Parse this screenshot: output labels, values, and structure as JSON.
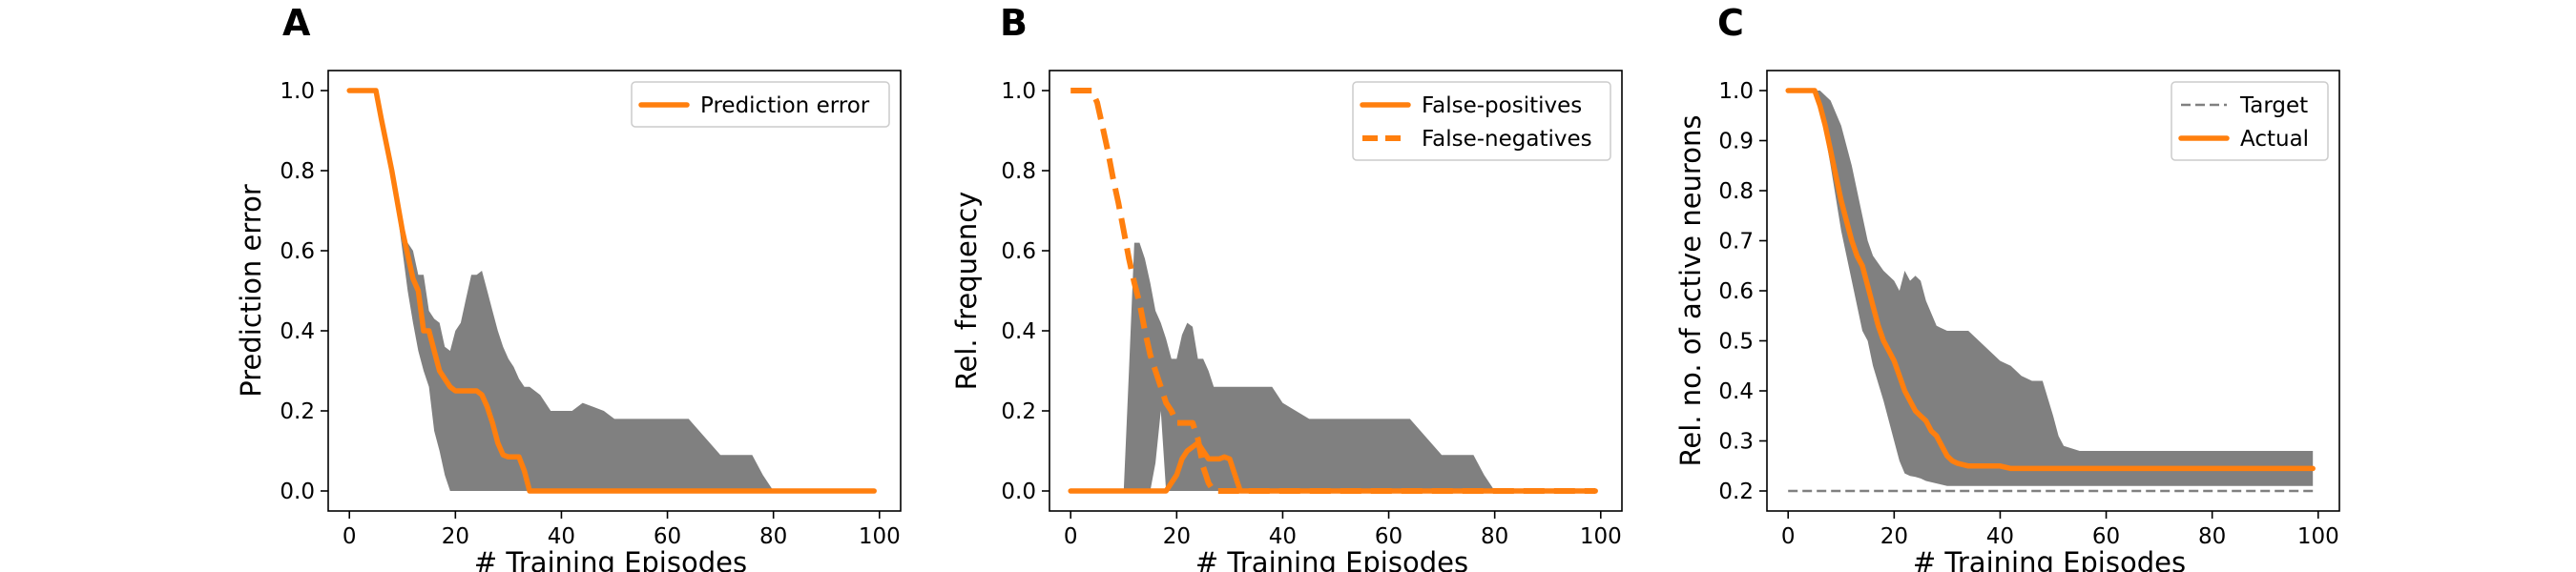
{
  "colors": {
    "series": "#ff7f0e",
    "band": "#808080",
    "target": "#808080"
  },
  "chart_data": [
    {
      "type": "line",
      "panel": "A",
      "xlabel": "# Training Episodes",
      "ylabel": "Prediction error",
      "xlim": [
        -4,
        104
      ],
      "ylim": [
        -0.05,
        1.05
      ],
      "xticks": [
        0,
        20,
        40,
        60,
        80,
        100
      ],
      "yticks": [
        0.0,
        0.2,
        0.4,
        0.6,
        0.8,
        1.0
      ],
      "ytick_labels": [
        "0.0",
        "0.2",
        "0.4",
        "0.6",
        "0.8",
        "1.0"
      ],
      "legend_position": "top-right",
      "series": [
        {
          "name": "Prediction error",
          "style": "solid",
          "x": [
            0,
            5,
            6,
            8,
            10,
            12,
            13,
            14,
            15,
            16,
            17,
            18,
            19,
            20,
            21,
            22,
            23,
            24,
            25,
            26,
            27,
            28,
            29,
            30,
            31,
            32,
            33,
            34,
            40,
            50,
            60,
            70,
            80,
            90,
            99
          ],
          "y": [
            1.0,
            1.0,
            0.93,
            0.8,
            0.65,
            0.53,
            0.5,
            0.4,
            0.4,
            0.35,
            0.3,
            0.28,
            0.26,
            0.25,
            0.25,
            0.25,
            0.25,
            0.25,
            0.24,
            0.21,
            0.17,
            0.12,
            0.09,
            0.085,
            0.085,
            0.085,
            0.05,
            0.0,
            0.0,
            0.0,
            0.0,
            0.0,
            0.0,
            0.0,
            0.0
          ]
        }
      ],
      "band": {
        "x": [
          0,
          5,
          8,
          10,
          11,
          12,
          13,
          14,
          15,
          16,
          17,
          18,
          19,
          20,
          21,
          22,
          23,
          24,
          25,
          26,
          27,
          28,
          29,
          30,
          31,
          32,
          33,
          34,
          36,
          38,
          40,
          42,
          44,
          46,
          48,
          50,
          55,
          60,
          64,
          66,
          68,
          70,
          72,
          76,
          78,
          80,
          85,
          90,
          95,
          99
        ],
        "lower": [
          1.0,
          1.0,
          0.8,
          0.6,
          0.5,
          0.42,
          0.35,
          0.3,
          0.26,
          0.15,
          0.1,
          0.04,
          0.0,
          0.0,
          0.0,
          0.0,
          0.0,
          0.0,
          0.0,
          0.0,
          0.0,
          0.0,
          0.0,
          0.0,
          0.0,
          0.0,
          0.0,
          0.0,
          0.0,
          0.0,
          0.0,
          0.0,
          0.0,
          0.0,
          0.0,
          0.0,
          0.0,
          0.0,
          0.0,
          0.0,
          0.0,
          0.0,
          0.0,
          0.0,
          0.0,
          0.0,
          0.0,
          0.0,
          0.0,
          0.0
        ],
        "upper": [
          1.0,
          1.0,
          0.8,
          0.62,
          0.62,
          0.6,
          0.54,
          0.54,
          0.45,
          0.43,
          0.42,
          0.36,
          0.35,
          0.4,
          0.42,
          0.48,
          0.54,
          0.54,
          0.55,
          0.5,
          0.45,
          0.4,
          0.36,
          0.33,
          0.31,
          0.28,
          0.26,
          0.26,
          0.24,
          0.2,
          0.2,
          0.2,
          0.22,
          0.21,
          0.2,
          0.18,
          0.18,
          0.18,
          0.18,
          0.15,
          0.12,
          0.09,
          0.09,
          0.09,
          0.04,
          0.0,
          0.0,
          0.0,
          0.0,
          0.0
        ]
      }
    },
    {
      "type": "line",
      "panel": "B",
      "xlabel": "# Training Episodes",
      "ylabel": "Rel. frequency",
      "xlim": [
        -4,
        104
      ],
      "ylim": [
        -0.05,
        1.05
      ],
      "xticks": [
        0,
        20,
        40,
        60,
        80,
        100
      ],
      "yticks": [
        0.0,
        0.2,
        0.4,
        0.6,
        0.8,
        1.0
      ],
      "ytick_labels": [
        "0.0",
        "0.2",
        "0.4",
        "0.6",
        "0.8",
        "1.0"
      ],
      "legend_position": "top-right",
      "series": [
        {
          "name": "False-positives",
          "style": "solid",
          "x": [
            0,
            10,
            15,
            16,
            18,
            20,
            21,
            22,
            23,
            24,
            25,
            26,
            27,
            28,
            29,
            30,
            31,
            32,
            33,
            34,
            40,
            50,
            60,
            70,
            80,
            90,
            99
          ],
          "y": [
            0.0,
            0.0,
            0.0,
            0.0,
            0.0,
            0.04,
            0.08,
            0.1,
            0.11,
            0.12,
            0.1,
            0.08,
            0.08,
            0.08,
            0.085,
            0.08,
            0.04,
            0.0,
            0.0,
            0.0,
            0.0,
            0.0,
            0.0,
            0.0,
            0.0,
            0.0,
            0.0
          ]
        },
        {
          "name": "False-negatives",
          "style": "dashed",
          "x": [
            0,
            4,
            5,
            6,
            7,
            8,
            9,
            10,
            11,
            12,
            13,
            14,
            15,
            16,
            17,
            18,
            19,
            20,
            21,
            22,
            23,
            24,
            25,
            26,
            27,
            28,
            30,
            40,
            50,
            60,
            70,
            80,
            90,
            99
          ],
          "y": [
            1.0,
            1.0,
            0.97,
            0.91,
            0.85,
            0.78,
            0.72,
            0.65,
            0.58,
            0.52,
            0.47,
            0.4,
            0.34,
            0.3,
            0.26,
            0.22,
            0.2,
            0.17,
            0.17,
            0.17,
            0.17,
            0.13,
            0.06,
            0.02,
            0.0,
            0.0,
            0.0,
            0.0,
            0.0,
            0.0,
            0.0,
            0.0,
            0.0,
            0.0
          ]
        }
      ],
      "band": {
        "x": [
          0,
          10,
          11,
          12,
          13,
          14,
          15,
          16,
          17,
          18,
          19,
          20,
          21,
          22,
          23,
          24,
          25,
          26,
          27,
          28,
          29,
          30,
          32,
          34,
          36,
          38,
          40,
          45,
          50,
          55,
          60,
          64,
          66,
          68,
          70,
          72,
          76,
          78,
          80,
          85,
          90,
          95,
          99
        ],
        "lower": [
          0.0,
          0.0,
          0.0,
          0.0,
          0.0,
          0.0,
          0.0,
          0.07,
          0.2,
          0.0,
          0.0,
          0.0,
          0.0,
          0.0,
          0.0,
          0.0,
          0.0,
          0.0,
          0.0,
          0.0,
          0.0,
          0.0,
          0.0,
          0.0,
          0.0,
          0.0,
          0.0,
          0.0,
          0.0,
          0.0,
          0.0,
          0.0,
          0.0,
          0.0,
          0.0,
          0.0,
          0.0,
          0.0,
          0.0,
          0.0,
          0.0,
          0.0,
          0.0
        ],
        "upper": [
          0.0,
          0.0,
          0.3,
          0.62,
          0.62,
          0.58,
          0.52,
          0.45,
          0.42,
          0.38,
          0.33,
          0.33,
          0.39,
          0.42,
          0.41,
          0.33,
          0.33,
          0.3,
          0.26,
          0.26,
          0.26,
          0.26,
          0.26,
          0.26,
          0.26,
          0.26,
          0.22,
          0.18,
          0.18,
          0.18,
          0.18,
          0.18,
          0.15,
          0.12,
          0.09,
          0.09,
          0.09,
          0.04,
          0.0,
          0.0,
          0.0,
          0.0,
          0.0
        ]
      }
    },
    {
      "type": "line",
      "panel": "C",
      "xlabel": "# Training Episodes",
      "ylabel": "Rel. no. of active neurons",
      "xlim": [
        -4,
        104
      ],
      "ylim": [
        0.16,
        1.04
      ],
      "xticks": [
        0,
        20,
        40,
        60,
        80,
        100
      ],
      "yticks": [
        0.2,
        0.3,
        0.4,
        0.5,
        0.6,
        0.7,
        0.8,
        0.9,
        1.0
      ],
      "ytick_labels": [
        "0.2",
        "0.3",
        "0.4",
        "0.5",
        "0.6",
        "0.7",
        "0.8",
        "0.9",
        "1.0"
      ],
      "legend_position": "top-right",
      "series": [
        {
          "name": "Target",
          "style": "thin-dashed",
          "x": [
            0,
            99
          ],
          "y": [
            0.2,
            0.2
          ]
        },
        {
          "name": "Actual",
          "style": "solid",
          "x": [
            0,
            5,
            6,
            7,
            8,
            9,
            10,
            11,
            12,
            13,
            14,
            15,
            16,
            17,
            18,
            19,
            20,
            21,
            22,
            23,
            24,
            25,
            26,
            27,
            28,
            29,
            30,
            31,
            32,
            34,
            36,
            38,
            40,
            42,
            45,
            50,
            60,
            70,
            80,
            90,
            99
          ],
          "y": [
            1.0,
            1.0,
            0.97,
            0.93,
            0.88,
            0.83,
            0.78,
            0.74,
            0.7,
            0.67,
            0.65,
            0.61,
            0.57,
            0.53,
            0.5,
            0.48,
            0.46,
            0.43,
            0.4,
            0.38,
            0.36,
            0.35,
            0.34,
            0.32,
            0.31,
            0.29,
            0.27,
            0.26,
            0.255,
            0.25,
            0.25,
            0.25,
            0.25,
            0.245,
            0.245,
            0.245,
            0.245,
            0.245,
            0.245,
            0.245,
            0.245
          ]
        }
      ],
      "band": {
        "x": [
          0,
          5,
          6,
          8,
          10,
          12,
          14,
          15,
          16,
          18,
          20,
          21,
          22,
          23,
          24,
          25,
          26,
          28,
          30,
          32,
          34,
          36,
          38,
          40,
          42,
          44,
          46,
          48,
          50,
          51,
          52,
          55,
          60,
          70,
          80,
          90,
          99
        ],
        "lower": [
          1.0,
          1.0,
          0.97,
          0.85,
          0.72,
          0.62,
          0.52,
          0.5,
          0.45,
          0.38,
          0.3,
          0.26,
          0.235,
          0.23,
          0.228,
          0.225,
          0.22,
          0.215,
          0.21,
          0.21,
          0.21,
          0.21,
          0.21,
          0.21,
          0.21,
          0.21,
          0.21,
          0.21,
          0.21,
          0.21,
          0.21,
          0.21,
          0.21,
          0.21,
          0.21,
          0.21,
          0.21
        ],
        "upper": [
          1.0,
          1.0,
          1.0,
          0.98,
          0.93,
          0.85,
          0.75,
          0.7,
          0.67,
          0.64,
          0.62,
          0.6,
          0.64,
          0.62,
          0.63,
          0.62,
          0.58,
          0.53,
          0.52,
          0.52,
          0.52,
          0.5,
          0.48,
          0.46,
          0.45,
          0.43,
          0.42,
          0.42,
          0.35,
          0.31,
          0.29,
          0.28,
          0.28,
          0.28,
          0.28,
          0.28,
          0.28
        ]
      }
    }
  ]
}
